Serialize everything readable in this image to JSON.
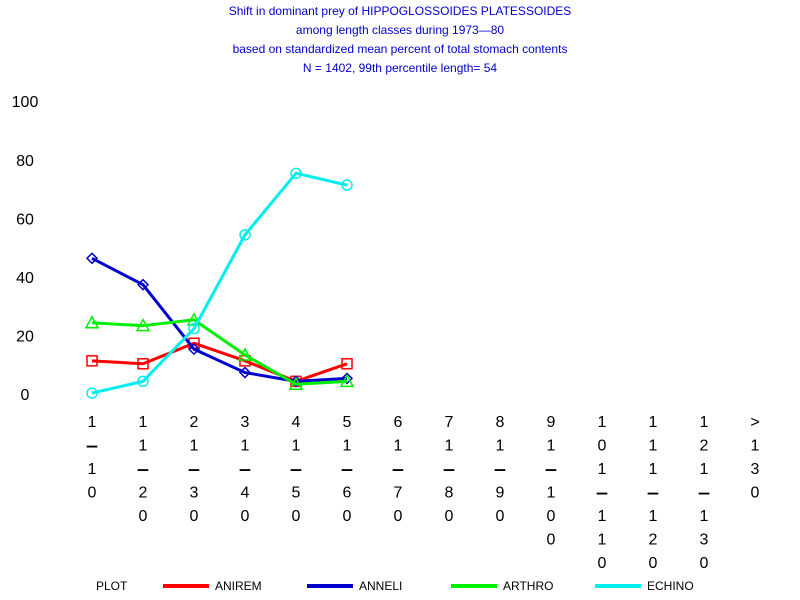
{
  "chart_data": {
    "type": "line",
    "title": [
      "Shift in dominant prey of HIPPOGLOSSOIDES PLATESSOIDES",
      "among length classes during 1973—80",
      "based on standardized mean percent of  total stomach contents",
      "N =  1402, 99th percentile  length= 54"
    ],
    "categories": [
      "1-10",
      "11-20",
      "21-30",
      "31-40",
      "41-50",
      "51-60",
      "61-70",
      "71-80",
      "81-90",
      "91-100",
      "101-110",
      "111-120",
      "121-130",
      ">130"
    ],
    "series": [
      {
        "name": "ANIREM",
        "color": "#ff0000",
        "marker": "square",
        "values": [
          12,
          11,
          18,
          12,
          5,
          11,
          null,
          null,
          null,
          null,
          null,
          null,
          null,
          null
        ]
      },
      {
        "name": "ANNELI",
        "color": "#0000cc",
        "marker": "diamond",
        "values": [
          47,
          38,
          16,
          8,
          5,
          6,
          null,
          null,
          null,
          null,
          null,
          null,
          null,
          null
        ]
      },
      {
        "name": "ARTHRO",
        "color": "#00ee00",
        "marker": "triangle",
        "values": [
          25,
          24,
          26,
          14,
          4,
          5,
          null,
          null,
          null,
          null,
          null,
          null,
          null,
          null
        ]
      },
      {
        "name": "ECHINO",
        "color": "#00eeee",
        "marker": "circle",
        "values": [
          1,
          5,
          23,
          55,
          76,
          72,
          null,
          null,
          null,
          null,
          null,
          null,
          null,
          null
        ]
      }
    ],
    "legend_title": "PLOT",
    "ylim": [
      0,
      100
    ],
    "yticks": [
      0,
      20,
      40,
      60,
      80,
      100
    ]
  }
}
